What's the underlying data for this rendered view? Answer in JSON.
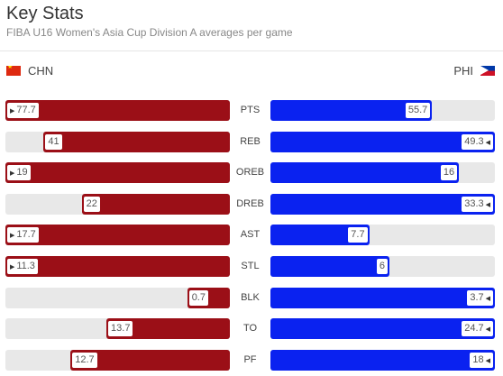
{
  "header": {
    "title": "Key Stats",
    "subtitle": "FIBA U16 Women's Asia Cup Division A averages per game"
  },
  "teams": {
    "left": {
      "code": "CHN",
      "flag_icon": "china-flag-icon",
      "color": "#9b0f17"
    },
    "right": {
      "code": "PHI",
      "flag_icon": "philippines-flag-icon",
      "color": "#0a22f0"
    }
  },
  "stats": [
    {
      "label": "PTS",
      "left": "77.7",
      "right": "55.7",
      "left_frac": 1.0,
      "right_frac": 0.72,
      "left_leader": true,
      "right_leader": false
    },
    {
      "label": "REB",
      "left": "41",
      "right": "49.3",
      "left_frac": 0.83,
      "right_frac": 1.0,
      "left_leader": false,
      "right_leader": true
    },
    {
      "label": "OREB",
      "left": "19",
      "right": "16",
      "left_frac": 1.0,
      "right_frac": 0.84,
      "left_leader": true,
      "right_leader": false
    },
    {
      "label": "DREB",
      "left": "22",
      "right": "33.3",
      "left_frac": 0.66,
      "right_frac": 1.0,
      "left_leader": false,
      "right_leader": true
    },
    {
      "label": "AST",
      "left": "17.7",
      "right": "7.7",
      "left_frac": 1.0,
      "right_frac": 0.44,
      "left_leader": true,
      "right_leader": false
    },
    {
      "label": "STL",
      "left": "11.3",
      "right": "6",
      "left_frac": 1.0,
      "right_frac": 0.53,
      "left_leader": true,
      "right_leader": false
    },
    {
      "label": "BLK",
      "left": "0.7",
      "right": "3.7",
      "left_frac": 0.19,
      "right_frac": 1.0,
      "left_leader": false,
      "right_leader": true
    },
    {
      "label": "TO",
      "left": "13.7",
      "right": "24.7",
      "left_frac": 0.55,
      "right_frac": 1.0,
      "left_leader": false,
      "right_leader": true
    },
    {
      "label": "PF",
      "left": "12.7",
      "right": "18",
      "left_frac": 0.71,
      "right_frac": 1.0,
      "left_leader": false,
      "right_leader": true
    }
  ]
}
